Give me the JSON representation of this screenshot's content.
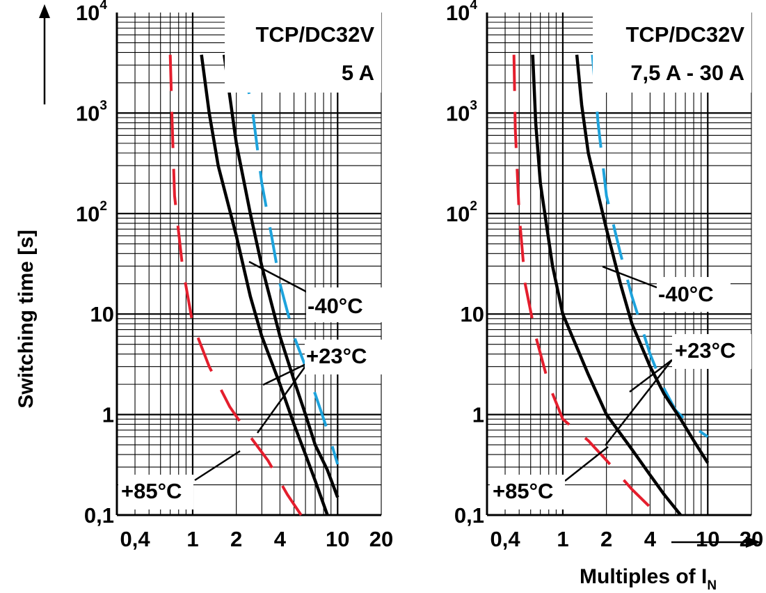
{
  "chart_data": [
    {
      "type": "line",
      "xscale": "log",
      "yscale": "log",
      "xlim": [
        0.3,
        20
      ],
      "ylim": [
        0.1,
        10000
      ],
      "x_ticks": [
        "0,4",
        "1",
        "2",
        "4",
        "10",
        "20"
      ],
      "y_ticks": [
        "0,1",
        "1",
        "10",
        "10",
        "10",
        "10"
      ],
      "y_tick_exponents": [
        "",
        "",
        "",
        "2",
        "3",
        "4"
      ],
      "title": "TCP/DC32V",
      "subtitle": "5 A",
      "grid": true,
      "series": [
        {
          "name": "-40°C",
          "color": "#1ea3dc",
          "style": "dashed",
          "x": [
            2.2,
            2.6,
            3.0,
            3.5,
            4.0,
            5.0,
            6.0,
            7.0,
            8.5,
            10.0
          ],
          "y": [
            3500,
            1000,
            200,
            60,
            20,
            6,
            3,
            1.6,
            0.7,
            0.32
          ]
        },
        {
          "name": "+23°C",
          "color": "#000000",
          "style": "solid",
          "x": [
            1.65,
            1.8,
            2.0,
            2.5,
            3.0,
            4.0,
            5.0,
            6.0,
            7.0,
            8.5,
            10.0
          ],
          "y": [
            3800,
            1500,
            500,
            100,
            30,
            6,
            2.2,
            1.0,
            0.5,
            0.28,
            0.15
          ]
        },
        {
          "name": "+23°C",
          "color": "#000000",
          "style": "solid",
          "x": [
            1.15,
            1.3,
            1.5,
            2.0,
            2.5,
            3.0,
            4.0,
            5.0,
            6.0,
            7.0,
            8.5
          ],
          "y": [
            3800,
            1000,
            300,
            60,
            15,
            6,
            2,
            0.8,
            0.4,
            0.22,
            0.1
          ]
        },
        {
          "name": "+85°C",
          "color": "#e41e2d",
          "style": "dashed",
          "x": [
            0.7,
            0.72,
            0.75,
            0.85,
            1.0,
            1.3,
            1.8,
            2.5,
            3.3,
            4.5,
            5.6
          ],
          "y": [
            3800,
            900,
            150,
            30,
            8,
            3,
            1.2,
            0.6,
            0.35,
            0.16,
            0.1
          ]
        }
      ],
      "annotations": [
        "-40°C",
        "+23°C",
        "+85°C"
      ]
    },
    {
      "type": "line",
      "xscale": "log",
      "yscale": "log",
      "xlim": [
        0.3,
        20
      ],
      "ylim": [
        0.1,
        10000
      ],
      "x_ticks": [
        "0,4",
        "1",
        "2",
        "4",
        "10",
        "20"
      ],
      "y_ticks": [
        "0,1",
        "1",
        "10",
        "10",
        "10",
        "10"
      ],
      "y_tick_exponents": [
        "",
        "",
        "",
        "2",
        "3",
        "4"
      ],
      "title": "TCP/DC32V",
      "subtitle": "7,5 A - 30 A",
      "grid": true,
      "series": [
        {
          "name": "-40°C",
          "color": "#1ea3dc",
          "style": "dashed",
          "x": [
            1.6,
            1.75,
            2.0,
            2.5,
            3.0,
            4.0,
            5.0,
            6.0,
            7.5,
            10.0
          ],
          "y": [
            3800,
            800,
            150,
            40,
            15,
            4,
            1.8,
            1.1,
            0.8,
            0.6
          ]
        },
        {
          "name": "+23°C",
          "color": "#000000",
          "style": "solid",
          "x": [
            1.25,
            1.35,
            1.5,
            2.0,
            2.5,
            3.0,
            4.0,
            5.0,
            6.5,
            8.0,
            10.0
          ],
          "y": [
            3800,
            1200,
            400,
            70,
            20,
            8,
            3,
            1.6,
            0.9,
            0.55,
            0.33
          ]
        },
        {
          "name": "+23°C",
          "color": "#000000",
          "style": "solid",
          "x": [
            0.62,
            0.65,
            0.7,
            0.85,
            1.0,
            1.5,
            2.0,
            3.0,
            4.0,
            5.0,
            6.5
          ],
          "y": [
            3800,
            800,
            200,
            30,
            10,
            2.5,
            1.0,
            0.45,
            0.25,
            0.16,
            0.1
          ]
        },
        {
          "name": "+85°C",
          "color": "#e41e2d",
          "style": "dashed",
          "x": [
            0.46,
            0.47,
            0.5,
            0.55,
            0.65,
            0.8,
            1.0,
            1.5,
            2.0,
            3.0,
            4.0
          ],
          "y": [
            3800,
            700,
            100,
            20,
            6,
            2,
            0.9,
            0.55,
            0.35,
            0.18,
            0.12
          ]
        }
      ],
      "annotations": [
        "-40°C",
        "+23°C",
        "+85°C"
      ]
    }
  ],
  "shared": {
    "ylabel": "Switching time [s]",
    "xlabel": "Multiples of I",
    "xlabel_subscript": "N"
  }
}
